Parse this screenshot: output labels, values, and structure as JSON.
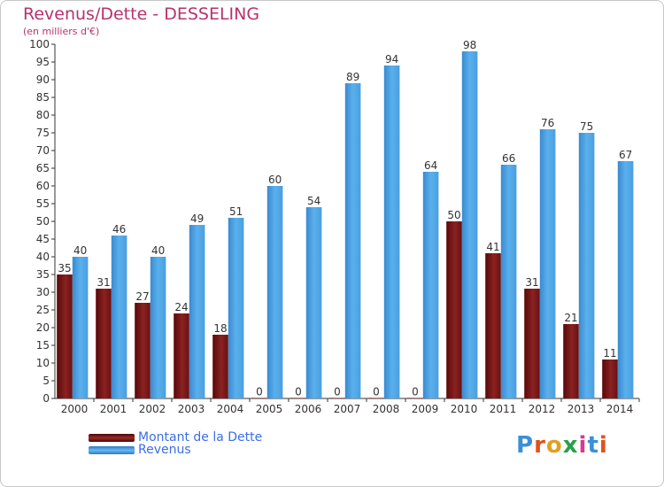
{
  "title": "Revenus/Dette - DESSELING",
  "subtitle": "(en milliers d'€)",
  "legend": [
    {
      "label": "Montant de la Dette",
      "color": "#7a1515"
    },
    {
      "label": "Revenus",
      "color": "#4a9fe0"
    }
  ],
  "logo": {
    "text": "Proxiti",
    "colors": [
      "#3a8fd8",
      "#e0501e",
      "#e0a020",
      "#2aa04a",
      "#d83a8a",
      "#3a8fd8",
      "#e0501e"
    ]
  },
  "chart_data": {
    "type": "bar",
    "categories": [
      "2000",
      "2001",
      "2002",
      "2003",
      "2004",
      "2005",
      "2006",
      "2007",
      "2008",
      "2009",
      "2010",
      "2011",
      "2012",
      "2013",
      "2014"
    ],
    "series": [
      {
        "name": "Montant de la Dette",
        "values": [
          35,
          31,
          27,
          24,
          18,
          0,
          0,
          0,
          0,
          0,
          50,
          41,
          31,
          21,
          11
        ]
      },
      {
        "name": "Revenus",
        "values": [
          40,
          46,
          40,
          49,
          51,
          60,
          54,
          89,
          94,
          64,
          98,
          66,
          76,
          75,
          67
        ]
      }
    ],
    "ylim": [
      0,
      100
    ],
    "yticks": [
      0,
      5,
      10,
      15,
      20,
      25,
      30,
      35,
      40,
      45,
      50,
      55,
      60,
      65,
      70,
      75,
      80,
      85,
      90,
      95,
      100
    ],
    "grid": false,
    "legend_position": "bottom-left"
  }
}
